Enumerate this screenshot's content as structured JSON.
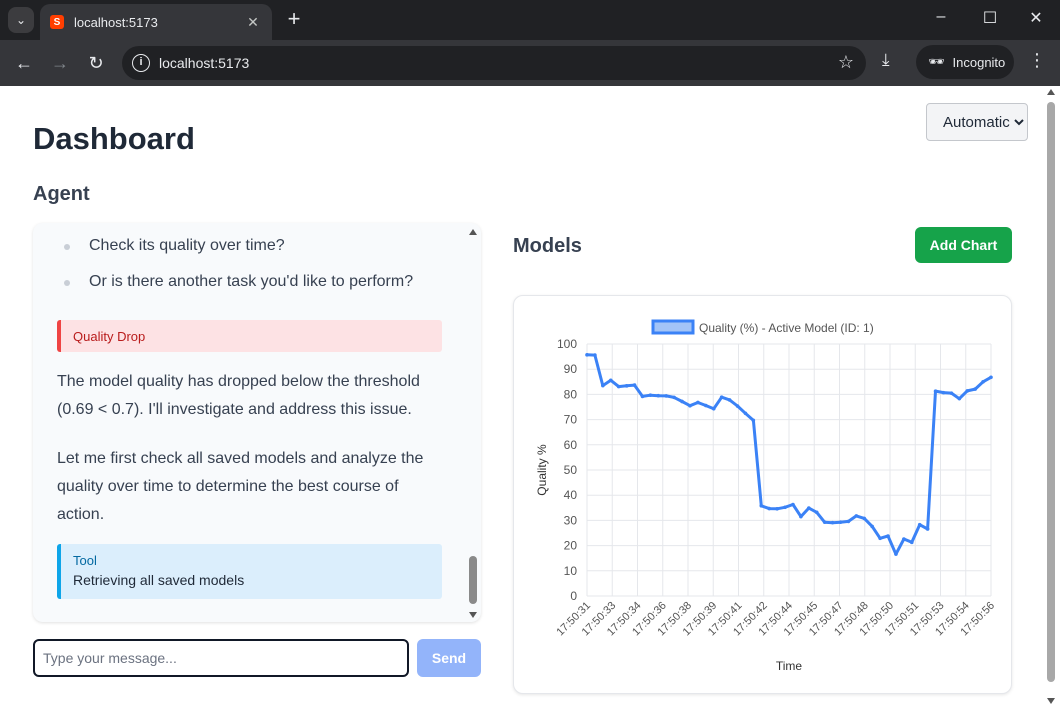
{
  "browser": {
    "tab_title": "localhost:5173",
    "url": "localhost:5173",
    "profile_label": "Incognito"
  },
  "page": {
    "title": "Dashboard",
    "mode_select": {
      "selected": "Automatic",
      "options": [
        "Automatic"
      ]
    },
    "agent": {
      "title": "Agent",
      "bullets": [
        "Check its quality over time?",
        "Or is there another task you'd like to perform?"
      ],
      "alert": {
        "label": "Quality Drop"
      },
      "paragraphs": [
        "The model quality has dropped below the threshold (0.69 < 0.7). I'll investigate and address this issue.",
        "Let me first check all saved models and analyze the quality over time to determine the best course of action."
      ],
      "tool": {
        "label": "Tool",
        "text": "Retrieving all saved models"
      },
      "input_placeholder": "Type your message...",
      "send_label": "Send"
    },
    "models": {
      "title": "Models",
      "add_chart_label": "Add Chart"
    }
  },
  "colors": {
    "line": "#3b82f6",
    "legend_fill": "#a3c4f7",
    "add_chart": "#16a34a",
    "send_disabled": "#93b4fa",
    "alert_border": "#ef4444",
    "tool_border": "#0ea5e9"
  },
  "icons": [
    "tab-search-icon",
    "svelte-favicon-icon",
    "close-icon",
    "plus-icon",
    "minimize-icon",
    "maximize-icon",
    "window-close-icon",
    "back-arrow-icon",
    "forward-arrow-icon",
    "reload-icon",
    "info-icon",
    "star-icon",
    "download-icon",
    "incognito-icon",
    "menu-dots-icon"
  ],
  "chart_data": {
    "type": "line",
    "title": "",
    "xlabel": "Time",
    "ylabel": "Quality %",
    "ylim": [
      0,
      100
    ],
    "yticks": [
      0,
      10,
      20,
      30,
      40,
      50,
      60,
      70,
      80,
      90,
      100
    ],
    "grid": true,
    "legend_position": "top",
    "x_tick_labels": [
      "17:50:31",
      "17:50:33",
      "17:50:34",
      "17:50:36",
      "17:50:38",
      "17:50:39",
      "17:50:41",
      "17:50:42",
      "17:50:44",
      "17:50:45",
      "17:50:47",
      "17:50:48",
      "17:50:50",
      "17:50:51",
      "17:50:53",
      "17:50:54",
      "17:50:56"
    ],
    "series": [
      {
        "name": "Quality (%) - Active Model (ID: 1)",
        "values": [
          95.7,
          95.6,
          83.5,
          85.6,
          83.1,
          83.4,
          83.7,
          79.2,
          79.7,
          79.5,
          79.4,
          78.8,
          77.2,
          75.5,
          76.8,
          75.6,
          74.3,
          78.9,
          77.8,
          75.4,
          72.5,
          69.7,
          35.8,
          34.7,
          34.6,
          35.2,
          36.3,
          31.5,
          34.9,
          33.2,
          29.3,
          29.1,
          29.3,
          29.6,
          31.8,
          30.8,
          27.6,
          22.9,
          23.8,
          16.6,
          22.6,
          21.3,
          28.3,
          26.6,
          81.3,
          80.7,
          80.5,
          78.3,
          81.4,
          82.1,
          85.0,
          86.8
        ]
      }
    ]
  }
}
